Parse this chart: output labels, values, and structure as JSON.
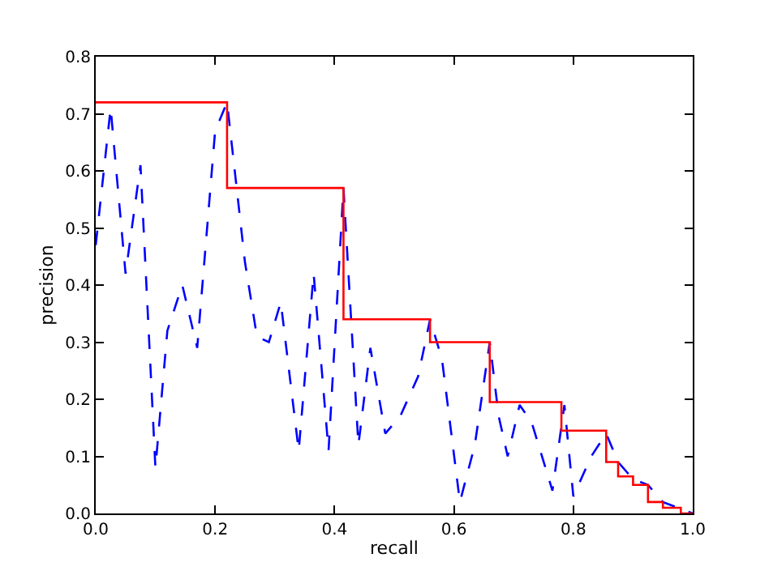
{
  "chart_data": {
    "type": "line",
    "xlabel": "recall",
    "ylabel": "precision",
    "xlim": [
      0,
      1
    ],
    "ylim": [
      0,
      0.8
    ],
    "xticks": [
      {
        "value": 0,
        "label": "0.0"
      },
      {
        "value": 0.2,
        "label": "0.2"
      },
      {
        "value": 0.4,
        "label": "0.4"
      },
      {
        "value": 0.6,
        "label": "0.6"
      },
      {
        "value": 0.8,
        "label": "0.8"
      },
      {
        "value": 1,
        "label": "1.0"
      }
    ],
    "yticks": [
      {
        "value": 0,
        "label": "0.0"
      },
      0.1,
      0.2,
      0.3,
      0.4,
      0.5,
      0.6,
      0.7,
      0.8
    ],
    "series": [
      {
        "line_style": "dashed",
        "color": "#0000ff",
        "x": [
          0,
          0.025,
          0.05,
          0.075,
          0.1,
          0.12,
          0.145,
          0.17,
          0.2,
          0.22,
          0.25,
          0.27,
          0.29,
          0.31,
          0.34,
          0.365,
          0.39,
          0.415,
          0.44,
          0.46,
          0.485,
          0.51,
          0.54,
          0.56,
          0.58,
          0.61,
          0.635,
          0.66,
          0.675,
          0.69,
          0.71,
          0.73,
          0.765,
          0.785,
          0.8,
          0.83,
          0.855,
          0.875,
          0.9,
          0.925,
          0.95,
          1.0
        ],
        "values": [
          0.47,
          0.71,
          0.42,
          0.61,
          0.08,
          0.32,
          0.4,
          0.29,
          0.67,
          0.72,
          0.44,
          0.31,
          0.3,
          0.37,
          0.11,
          0.42,
          0.11,
          0.57,
          0.12,
          0.29,
          0.14,
          0.17,
          0.24,
          0.34,
          0.27,
          0.02,
          0.12,
          0.3,
          0.17,
          0.1,
          0.19,
          0.16,
          0.04,
          0.19,
          0.03,
          0.1,
          0.14,
          0.09,
          0.06,
          0.05,
          0.02,
          0.0
        ]
      },
      {
        "type": "step",
        "line_style": "solid",
        "color": "#ff0000",
        "x": [
          0,
          0.22,
          0.415,
          0.56,
          0.66,
          0.78,
          0.855,
          0.875,
          0.9,
          0.925,
          0.95,
          0.98,
          1.0
        ],
        "values": [
          0.72,
          0.57,
          0.34,
          0.3,
          0.195,
          0.145,
          0.09,
          0.065,
          0.05,
          0.02,
          0.01,
          0.0,
          0.0
        ]
      }
    ]
  }
}
